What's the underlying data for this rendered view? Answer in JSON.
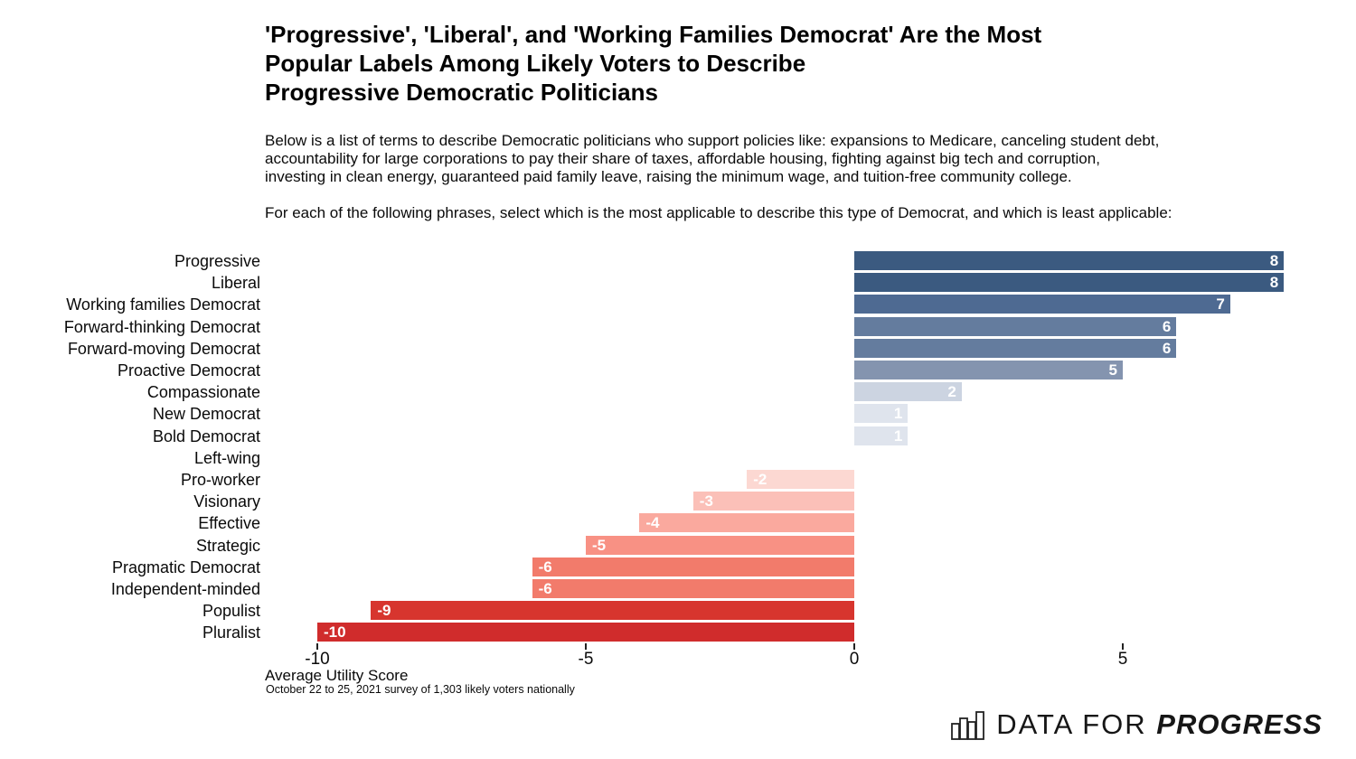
{
  "header": {
    "title": "'Progressive', 'Liberal', and 'Working Families Democrat' Are the Most\nPopular Labels Among Likely Voters to Describe\nProgressive Democratic Politicians",
    "paragraph1": "Below is a list of terms to describe Democratic politicians who support policies like: expansions to Medicare, canceling student debt,\naccountability for large corporations to pay their share of taxes, affordable housing, fighting against big tech and corruption,\ninvesting in clean energy, guaranteed paid family leave, raising the minimum wage, and tuition-free community college.",
    "paragraph2": "For each of the following phrases, select which is the most applicable to describe this type of Democrat, and which is least applicable:"
  },
  "chart_data": {
    "type": "bar",
    "orientation": "horizontal",
    "title": "'Progressive', 'Liberal', and 'Working Families Democrat' Are the Most Popular Labels Among Likely Voters to Describe Progressive Democratic Politicians",
    "categories": [
      "Progressive",
      "Liberal",
      "Working families Democrat",
      "Forward-thinking Democrat",
      "Forward-moving Democrat",
      "Proactive Democrat",
      "Compassionate",
      "New Democrat",
      "Bold Democrat",
      "Left-wing",
      "Pro-worker",
      "Visionary",
      "Effective",
      "Strategic",
      "Pragmatic Democrat",
      "Independent-minded",
      "Populist",
      "Pluralist"
    ],
    "values": [
      8,
      8,
      7,
      6,
      6,
      5,
      2,
      1,
      1,
      0,
      -2,
      -3,
      -4,
      -5,
      -6,
      -6,
      -9,
      -10
    ],
    "bar_colors": [
      "#3b5a80",
      "#3b5a80",
      "#4e6a92",
      "#647c9e",
      "#647c9e",
      "#8494af",
      "#ccd4e1",
      "#dfe4ed",
      "#dfe4ed",
      "#ffffff",
      "#fcd8d2",
      "#fbc0b8",
      "#faa99e",
      "#f89184",
      "#f27b6b",
      "#f27b6b",
      "#d7352e",
      "#d02c2c"
    ],
    "value_label_color": "#ffffff",
    "xlabel": "Average Utility Score",
    "x_ticks": [
      -10,
      -5,
      0,
      5
    ],
    "xlim": [
      -10.9,
      9.3
    ],
    "grid": false,
    "legend": "none",
    "value_labels_position": "far end of each bar; zero values have no bar and no label"
  },
  "footnote": "October 22 to 25, 2021 survey of 1,303 likely voters nationally",
  "logo": {
    "icon": "bar-chart-icon",
    "text_light": "DATA FOR",
    "text_bold": "PROGRESS"
  }
}
